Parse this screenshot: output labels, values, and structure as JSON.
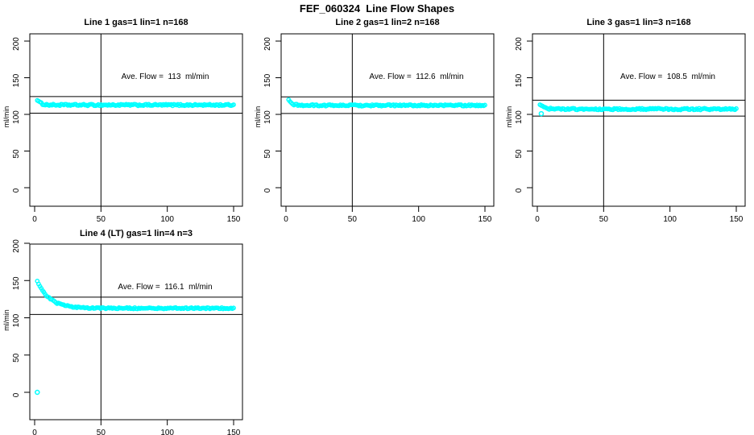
{
  "page_title": "FEF_060324  Line Flow Shapes",
  "colors": {
    "points": "#00ffff",
    "axis": "#000000",
    "background": "#ffffff"
  },
  "chart_data": [
    {
      "type": "scatter",
      "title": "Line 1 gas=1 lin=1 n=168",
      "annotation": "Ave. Flow =  113  ml/min",
      "ave_flow": 113,
      "n": 168,
      "xlabel": "",
      "ylabel": "ml/min",
      "xticks": [
        0,
        50,
        100,
        150
      ],
      "yticks": [
        0,
        50,
        100,
        150,
        200
      ],
      "xlim": [
        0,
        150
      ],
      "ylim": [
        0,
        200
      ],
      "vline_x": 50,
      "ref_lines": [
        124.3,
        101.7
      ],
      "series": {
        "x_start": 2,
        "x_end": 150,
        "points": 149,
        "y_initial": 120,
        "y_settle": 112.8,
        "decay_tau": 2.5,
        "jitter": 1.1,
        "outliers": []
      }
    },
    {
      "type": "scatter",
      "title": "Line 2 gas=1 lin=2 n=168",
      "annotation": "Ave. Flow =  112.6  ml/min",
      "ave_flow": 112.6,
      "n": 168,
      "xlabel": "",
      "ylabel": "ml/min",
      "xticks": [
        0,
        50,
        100,
        150
      ],
      "yticks": [
        0,
        50,
        100,
        150,
        200
      ],
      "xlim": [
        0,
        150
      ],
      "ylim": [
        0,
        200
      ],
      "vline_x": 50,
      "ref_lines": [
        123.9,
        101.3
      ],
      "series": {
        "x_start": 2,
        "x_end": 150,
        "points": 149,
        "y_initial": 119,
        "y_settle": 112.3,
        "decay_tau": 2.5,
        "jitter": 1.1,
        "outliers": []
      }
    },
    {
      "type": "scatter",
      "title": "Line 3 gas=1 lin=3 n=168",
      "annotation": "Ave. Flow =  108.5  ml/min",
      "ave_flow": 108.5,
      "n": 168,
      "xlabel": "",
      "ylabel": "ml/min",
      "xticks": [
        0,
        50,
        100,
        150
      ],
      "yticks": [
        0,
        50,
        100,
        150,
        200
      ],
      "xlim": [
        0,
        150
      ],
      "ylim": [
        0,
        200
      ],
      "vline_x": 50,
      "ref_lines": [
        119.4,
        97.7
      ],
      "series": {
        "x_start": 2,
        "x_end": 150,
        "points": 149,
        "y_initial": 113.5,
        "y_settle": 107.2,
        "decay_tau": 3,
        "jitter": 1.1,
        "outliers": [
          [
            3,
            101
          ]
        ]
      }
    },
    {
      "type": "scatter",
      "title": "Line 4 (LT) gas=1 lin=4 n=3",
      "annotation": "Ave. Flow =  116.1  ml/min",
      "ave_flow": 116.1,
      "n": 3,
      "xlabel": "",
      "ylabel": "ml/min",
      "xticks": [
        0,
        50,
        100,
        150
      ],
      "yticks": [
        0,
        50,
        100,
        150,
        200
      ],
      "xlim": [
        0,
        150
      ],
      "ylim": [
        0,
        200
      ],
      "vline_x": 50,
      "ref_lines": [
        127.7,
        104.5
      ],
      "series": {
        "x_start": 2,
        "x_end": 150,
        "points": 150,
        "y_initial": 150,
        "y_settle": 112.8,
        "decay_tau": 9,
        "jitter": 0.9,
        "outliers": [
          [
            2,
            0
          ]
        ]
      }
    }
  ]
}
